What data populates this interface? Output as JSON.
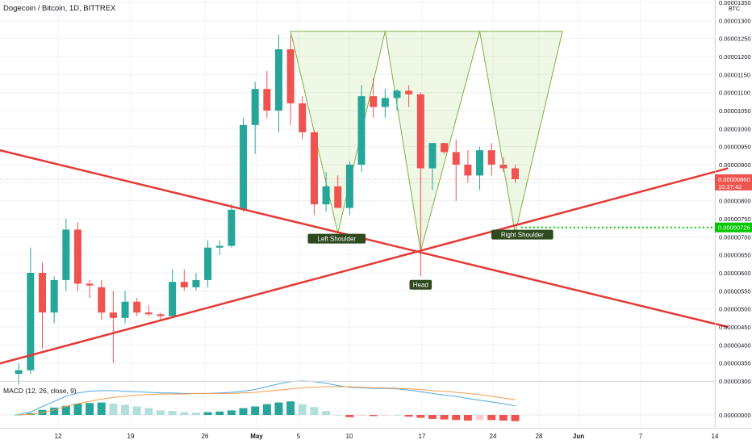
{
  "header": {
    "title": "Dogecoin / Bitcoin, 1D, BITTREX"
  },
  "axis": {
    "currency": "BTC"
  },
  "price_tags": {
    "last_price": "0.00000860",
    "countdown": "10:37:42",
    "target": "0.00000726"
  },
  "macd_label": "MACD (12, 26, close, 9)",
  "colors": {
    "bull": "#26a69a",
    "bear": "#ef5350",
    "trendline": "#e53935",
    "label_bg": "#2f4a1f",
    "target": "#00c800",
    "macd_line": "#4fa8e0",
    "signal_line": "#f39c4a"
  },
  "chart_data": [
    {
      "type": "candlestick",
      "ylim": [
        2.9e-06,
        1.34e-05
      ],
      "y_ticks": [
        "0.00001350",
        "0.00001300",
        "0.00001250",
        "0.00001200",
        "0.00001150",
        "0.00001100",
        "0.00001050",
        "0.00001000",
        "0.00000950",
        "0.00000900",
        "0.00000850",
        "0.00000800",
        "0.00000750",
        "0.00000700",
        "0.00000650",
        "0.00000600",
        "0.00000550",
        "0.00000500",
        "0.00000450",
        "0.00000400",
        "0.00000350",
        "0.00000300"
      ],
      "x_ticks": [
        "12",
        "19",
        "26",
        "May",
        "5",
        "10",
        "17",
        "24",
        "28",
        "Jun",
        "7",
        "14"
      ],
      "candles": [
        {
          "o": 3.2,
          "h": 3.5,
          "l": 2.9,
          "c": 3.3
        },
        {
          "o": 3.3,
          "h": 6.7,
          "l": 3.2,
          "c": 6.0
        },
        {
          "o": 6.0,
          "h": 6.3,
          "l": 3.9,
          "c": 4.9
        },
        {
          "o": 4.9,
          "h": 5.9,
          "l": 4.6,
          "c": 5.8
        },
        {
          "o": 5.8,
          "h": 7.5,
          "l": 5.5,
          "c": 7.2
        },
        {
          "o": 7.2,
          "h": 7.4,
          "l": 5.5,
          "c": 5.7
        },
        {
          "o": 5.7,
          "h": 5.8,
          "l": 5.3,
          "c": 5.65
        },
        {
          "o": 5.6,
          "h": 5.8,
          "l": 4.7,
          "c": 4.9
        },
        {
          "o": 4.9,
          "h": 5.5,
          "l": 3.5,
          "c": 4.75
        },
        {
          "o": 4.75,
          "h": 5.5,
          "l": 4.6,
          "c": 5.2
        },
        {
          "o": 5.2,
          "h": 5.3,
          "l": 4.8,
          "c": 4.9
        },
        {
          "o": 4.9,
          "h": 5.1,
          "l": 4.8,
          "c": 4.85
        },
        {
          "o": 4.85,
          "h": 4.9,
          "l": 4.7,
          "c": 4.8
        },
        {
          "o": 4.8,
          "h": 6.1,
          "l": 4.75,
          "c": 5.75
        },
        {
          "o": 5.75,
          "h": 6.1,
          "l": 5.5,
          "c": 5.6
        },
        {
          "o": 5.6,
          "h": 6.0,
          "l": 5.5,
          "c": 5.8
        },
        {
          "o": 5.8,
          "h": 6.9,
          "l": 5.6,
          "c": 6.7
        },
        {
          "o": 6.7,
          "h": 6.9,
          "l": 6.5,
          "c": 6.75
        },
        {
          "o": 6.75,
          "h": 7.9,
          "l": 6.7,
          "c": 7.75
        },
        {
          "o": 7.75,
          "h": 10.3,
          "l": 7.7,
          "c": 10.1
        },
        {
          "o": 10.1,
          "h": 11.3,
          "l": 9.3,
          "c": 11.1
        },
        {
          "o": 11.1,
          "h": 11.6,
          "l": 10.3,
          "c": 10.5
        },
        {
          "o": 10.5,
          "h": 12.6,
          "l": 9.9,
          "c": 12.2
        },
        {
          "o": 12.2,
          "h": 12.6,
          "l": 10.1,
          "c": 10.7
        },
        {
          "o": 10.7,
          "h": 10.9,
          "l": 9.7,
          "c": 9.9
        },
        {
          "o": 9.9,
          "h": 9.95,
          "l": 7.6,
          "c": 7.9
        },
        {
          "o": 7.9,
          "h": 8.8,
          "l": 7.7,
          "c": 8.4
        },
        {
          "o": 8.4,
          "h": 8.7,
          "l": 7.8,
          "c": 7.8
        },
        {
          "o": 7.8,
          "h": 9.1,
          "l": 7.6,
          "c": 9.0
        },
        {
          "o": 9.0,
          "h": 11.2,
          "l": 8.8,
          "c": 10.9
        },
        {
          "o": 10.9,
          "h": 11.4,
          "l": 10.3,
          "c": 10.6
        },
        {
          "o": 10.6,
          "h": 11.1,
          "l": 10.3,
          "c": 10.85
        },
        {
          "o": 10.85,
          "h": 11.1,
          "l": 10.5,
          "c": 11.05
        },
        {
          "o": 11.05,
          "h": 11.2,
          "l": 10.6,
          "c": 10.95
        },
        {
          "o": 10.95,
          "h": 11.0,
          "l": 5.9,
          "c": 8.9
        },
        {
          "o": 8.9,
          "h": 9.6,
          "l": 8.3,
          "c": 9.6
        },
        {
          "o": 9.6,
          "h": 9.6,
          "l": 9.3,
          "c": 9.35
        },
        {
          "o": 9.35,
          "h": 9.7,
          "l": 8.0,
          "c": 9.0
        },
        {
          "o": 9.0,
          "h": 9.4,
          "l": 8.5,
          "c": 8.7
        },
        {
          "o": 8.7,
          "h": 9.5,
          "l": 8.3,
          "c": 9.4
        },
        {
          "o": 9.4,
          "h": 9.6,
          "l": 8.7,
          "c": 9.0
        },
        {
          "o": 9.0,
          "h": 9.2,
          "l": 8.8,
          "c": 8.9
        },
        {
          "o": 8.9,
          "h": 9.0,
          "l": 8.5,
          "c": 8.6
        }
      ],
      "trendlines": [
        {
          "name": "descending",
          "points": [
            [
              -6,
              9.75
            ],
            [
              60,
              4.5
            ]
          ]
        },
        {
          "name": "ascending",
          "points": [
            [
              -6,
              3.1
            ],
            [
              60,
              8.9
            ]
          ]
        }
      ],
      "pattern_triangles": [
        [
          [
            23,
            12.7
          ],
          [
            31,
            12.7
          ],
          [
            27,
            7.1
          ]
        ],
        [
          [
            31,
            12.7
          ],
          [
            39,
            12.7
          ],
          [
            34,
            6.6
          ]
        ],
        [
          [
            39,
            12.7
          ],
          [
            46,
            12.7
          ],
          [
            42,
            7.1
          ]
        ]
      ],
      "annotations": [
        {
          "text": "Left Shoulder",
          "x": 26.9,
          "y": 6.95
        },
        {
          "text": "Head",
          "x": 34.0,
          "y": 5.67
        },
        {
          "text": "Right Shoulder",
          "x": 42.6,
          "y": 7.06
        }
      ],
      "target_line": 7.26
    },
    {
      "type": "bar",
      "name": "MACD histogram",
      "ylim": [
        -1.5,
        6.5
      ],
      "y_ticks": [
        "0.00000000"
      ],
      "values": [
        0.05,
        0.3,
        0.9,
        1.3,
        1.6,
        2.0,
        2.1,
        2.2,
        2.0,
        1.8,
        1.5,
        1.2,
        0.8,
        0.7,
        0.5,
        0.4,
        0.5,
        0.6,
        0.8,
        1.2,
        1.5,
        1.9,
        2.2,
        2.4,
        1.9,
        1.4,
        0.7,
        0.0,
        -0.4,
        -0.2,
        -0.2,
        -0.1,
        0.0,
        -0.3,
        -0.5,
        -0.7,
        -0.8,
        -0.9,
        -1.0,
        -0.9,
        -0.9,
        -1.0,
        -1.1
      ],
      "lines": {
        "macd": [
          0.1,
          0.5,
          1.5,
          2.4,
          3.3,
          3.9,
          4.2,
          4.3,
          4.3,
          4.2,
          4.1,
          4.0,
          3.9,
          3.9,
          3.8,
          3.8,
          3.8,
          3.9,
          4.0,
          4.2,
          4.5,
          5.0,
          5.5,
          5.9,
          6.0,
          5.9,
          5.6,
          5.2,
          4.9,
          4.8,
          4.7,
          4.7,
          4.6,
          4.4,
          4.1,
          3.8,
          3.5,
          3.3,
          2.9,
          2.6,
          2.3,
          2.0,
          1.6
        ],
        "signal": [
          0.0,
          0.1,
          0.4,
          0.9,
          1.5,
          2.0,
          2.4,
          2.8,
          3.1,
          3.3,
          3.5,
          3.6,
          3.7,
          3.7,
          3.7,
          3.8,
          3.8,
          3.8,
          3.8,
          3.9,
          4.0,
          4.2,
          4.4,
          4.6,
          4.8,
          4.9,
          5.0,
          5.0,
          5.0,
          4.9,
          4.8,
          4.8,
          4.7,
          4.6,
          4.5,
          4.3,
          4.2,
          4.0,
          3.8,
          3.6,
          3.3,
          3.0,
          2.7
        ]
      }
    }
  ]
}
